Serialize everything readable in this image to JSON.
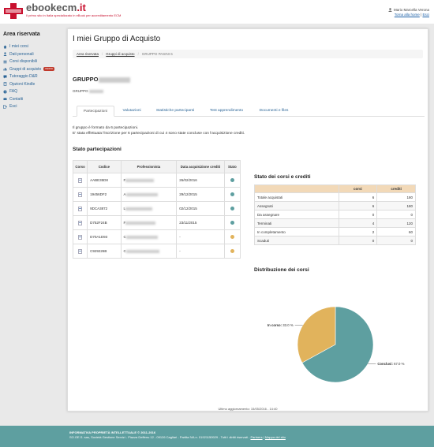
{
  "header": {
    "logo_main": "ebookecm",
    "logo_tld": ".it",
    "tagline": "Il primo sito in Italia specializzato in eBook per accreditamento ECM",
    "user_name": "Mario Marcella Verona",
    "links": [
      "Torna alla home",
      "Esci"
    ]
  },
  "sidebar": {
    "title": "Area riservata",
    "items": [
      {
        "label": "I miei corsi",
        "icon": "home-icon"
      },
      {
        "label": "Dati personali",
        "icon": "user-icon"
      },
      {
        "label": "Corsi disponibili",
        "icon": "list-icon"
      },
      {
        "label": "Gruppi di acquisto",
        "icon": "chart-icon",
        "badge": "nuovo"
      },
      {
        "label": "Tutoraggio D&R",
        "icon": "chat-icon"
      },
      {
        "label": "Opzioni Kindle",
        "icon": "book-icon"
      },
      {
        "label": "FAQ",
        "icon": "question-icon"
      },
      {
        "label": "Contatti",
        "icon": "envelope-icon"
      },
      {
        "label": "Esci",
        "icon": "logout-icon"
      }
    ]
  },
  "main": {
    "title": "I miei Gruppo di Acquisto",
    "breadcrumb": [
      "Area riservata",
      "Gruppi di acquisto",
      "GRUPPO PASINI 6"
    ],
    "group_title": "GRUPPO",
    "group_sub": "GRUPPO",
    "tabs": [
      "Partecipazioni",
      "Valutazioni",
      "Statistiche partecipanti",
      "Test apprendimento",
      "Documenti e files"
    ],
    "intro_1": "Il gruppo è formato da 6 partecipazioni.",
    "intro_2": "E' stata effettuata l'iscrizione per 6 partecipazioni di cui 4 sono state concluse con l'acquisizione crediti.",
    "participations_title": "Stato partecipazioni",
    "participations_headers": [
      "Corso",
      "Codice",
      "Professionista",
      "Data acquisizione crediti",
      "Stato"
    ],
    "participations": [
      {
        "code": "AABE35D8",
        "name": "F",
        "date": "26/02/2016",
        "status": "done"
      },
      {
        "code": "19456DF2",
        "name": "A",
        "date": "29/12/2015",
        "status": "done"
      },
      {
        "code": "9DCA3872",
        "name": "L",
        "date": "02/12/2015",
        "status": "done"
      },
      {
        "code": "D752F24B",
        "name": "F",
        "date": "23/11/2015",
        "status": "done"
      },
      {
        "code": "D70A1D93",
        "name": "C",
        "date": "-",
        "status": "pending"
      },
      {
        "code": "C929226B",
        "name": "C",
        "date": "-",
        "status": "pending"
      }
    ],
    "status_colors": {
      "done": "#5e9fa0",
      "pending": "#e1b35c"
    },
    "courses_title": "Stato dei corsi e crediti",
    "courses_headers": [
      "",
      "corsi",
      "crediti"
    ],
    "courses": [
      {
        "label": "Totale acquistati",
        "corsi": "6",
        "crediti": "180"
      },
      {
        "label": "Assegnati",
        "corsi": "6",
        "crediti": "180"
      },
      {
        "label": "Da assegnare",
        "corsi": "0",
        "crediti": "0"
      },
      {
        "label": "Terminati",
        "corsi": "4",
        "crediti": "120"
      },
      {
        "label": "In completamento",
        "corsi": "2",
        "crediti": "60"
      },
      {
        "label": "Scaduti",
        "corsi": "0",
        "crediti": "0"
      }
    ],
    "distribution_title": "Distribuzione dei corsi",
    "last_update": "Ultimo aggiornamento: 15/05/2016 - 14:40"
  },
  "chart_data": {
    "type": "pie",
    "title": "Distribuzione dei corsi",
    "slices": [
      {
        "label": "Conclusi",
        "value": 67.0,
        "color": "#5e9fa0"
      },
      {
        "label": "In corso",
        "value": 33.0,
        "color": "#e1b35c"
      }
    ]
  },
  "footer": {
    "line1": "INFORMATIVA PROPRIETÀ INTELLETTUALE © 2011-2016",
    "line2": "SO.GE.S. sas, Società Gestione Servizi - Piazza Deffenu 12 - 09126 Cagliari - Partita IVA n. 01921150929 - Tutti i diritti riservati -",
    "partners": "Partners",
    "sitemap": "Mappa del sito"
  }
}
